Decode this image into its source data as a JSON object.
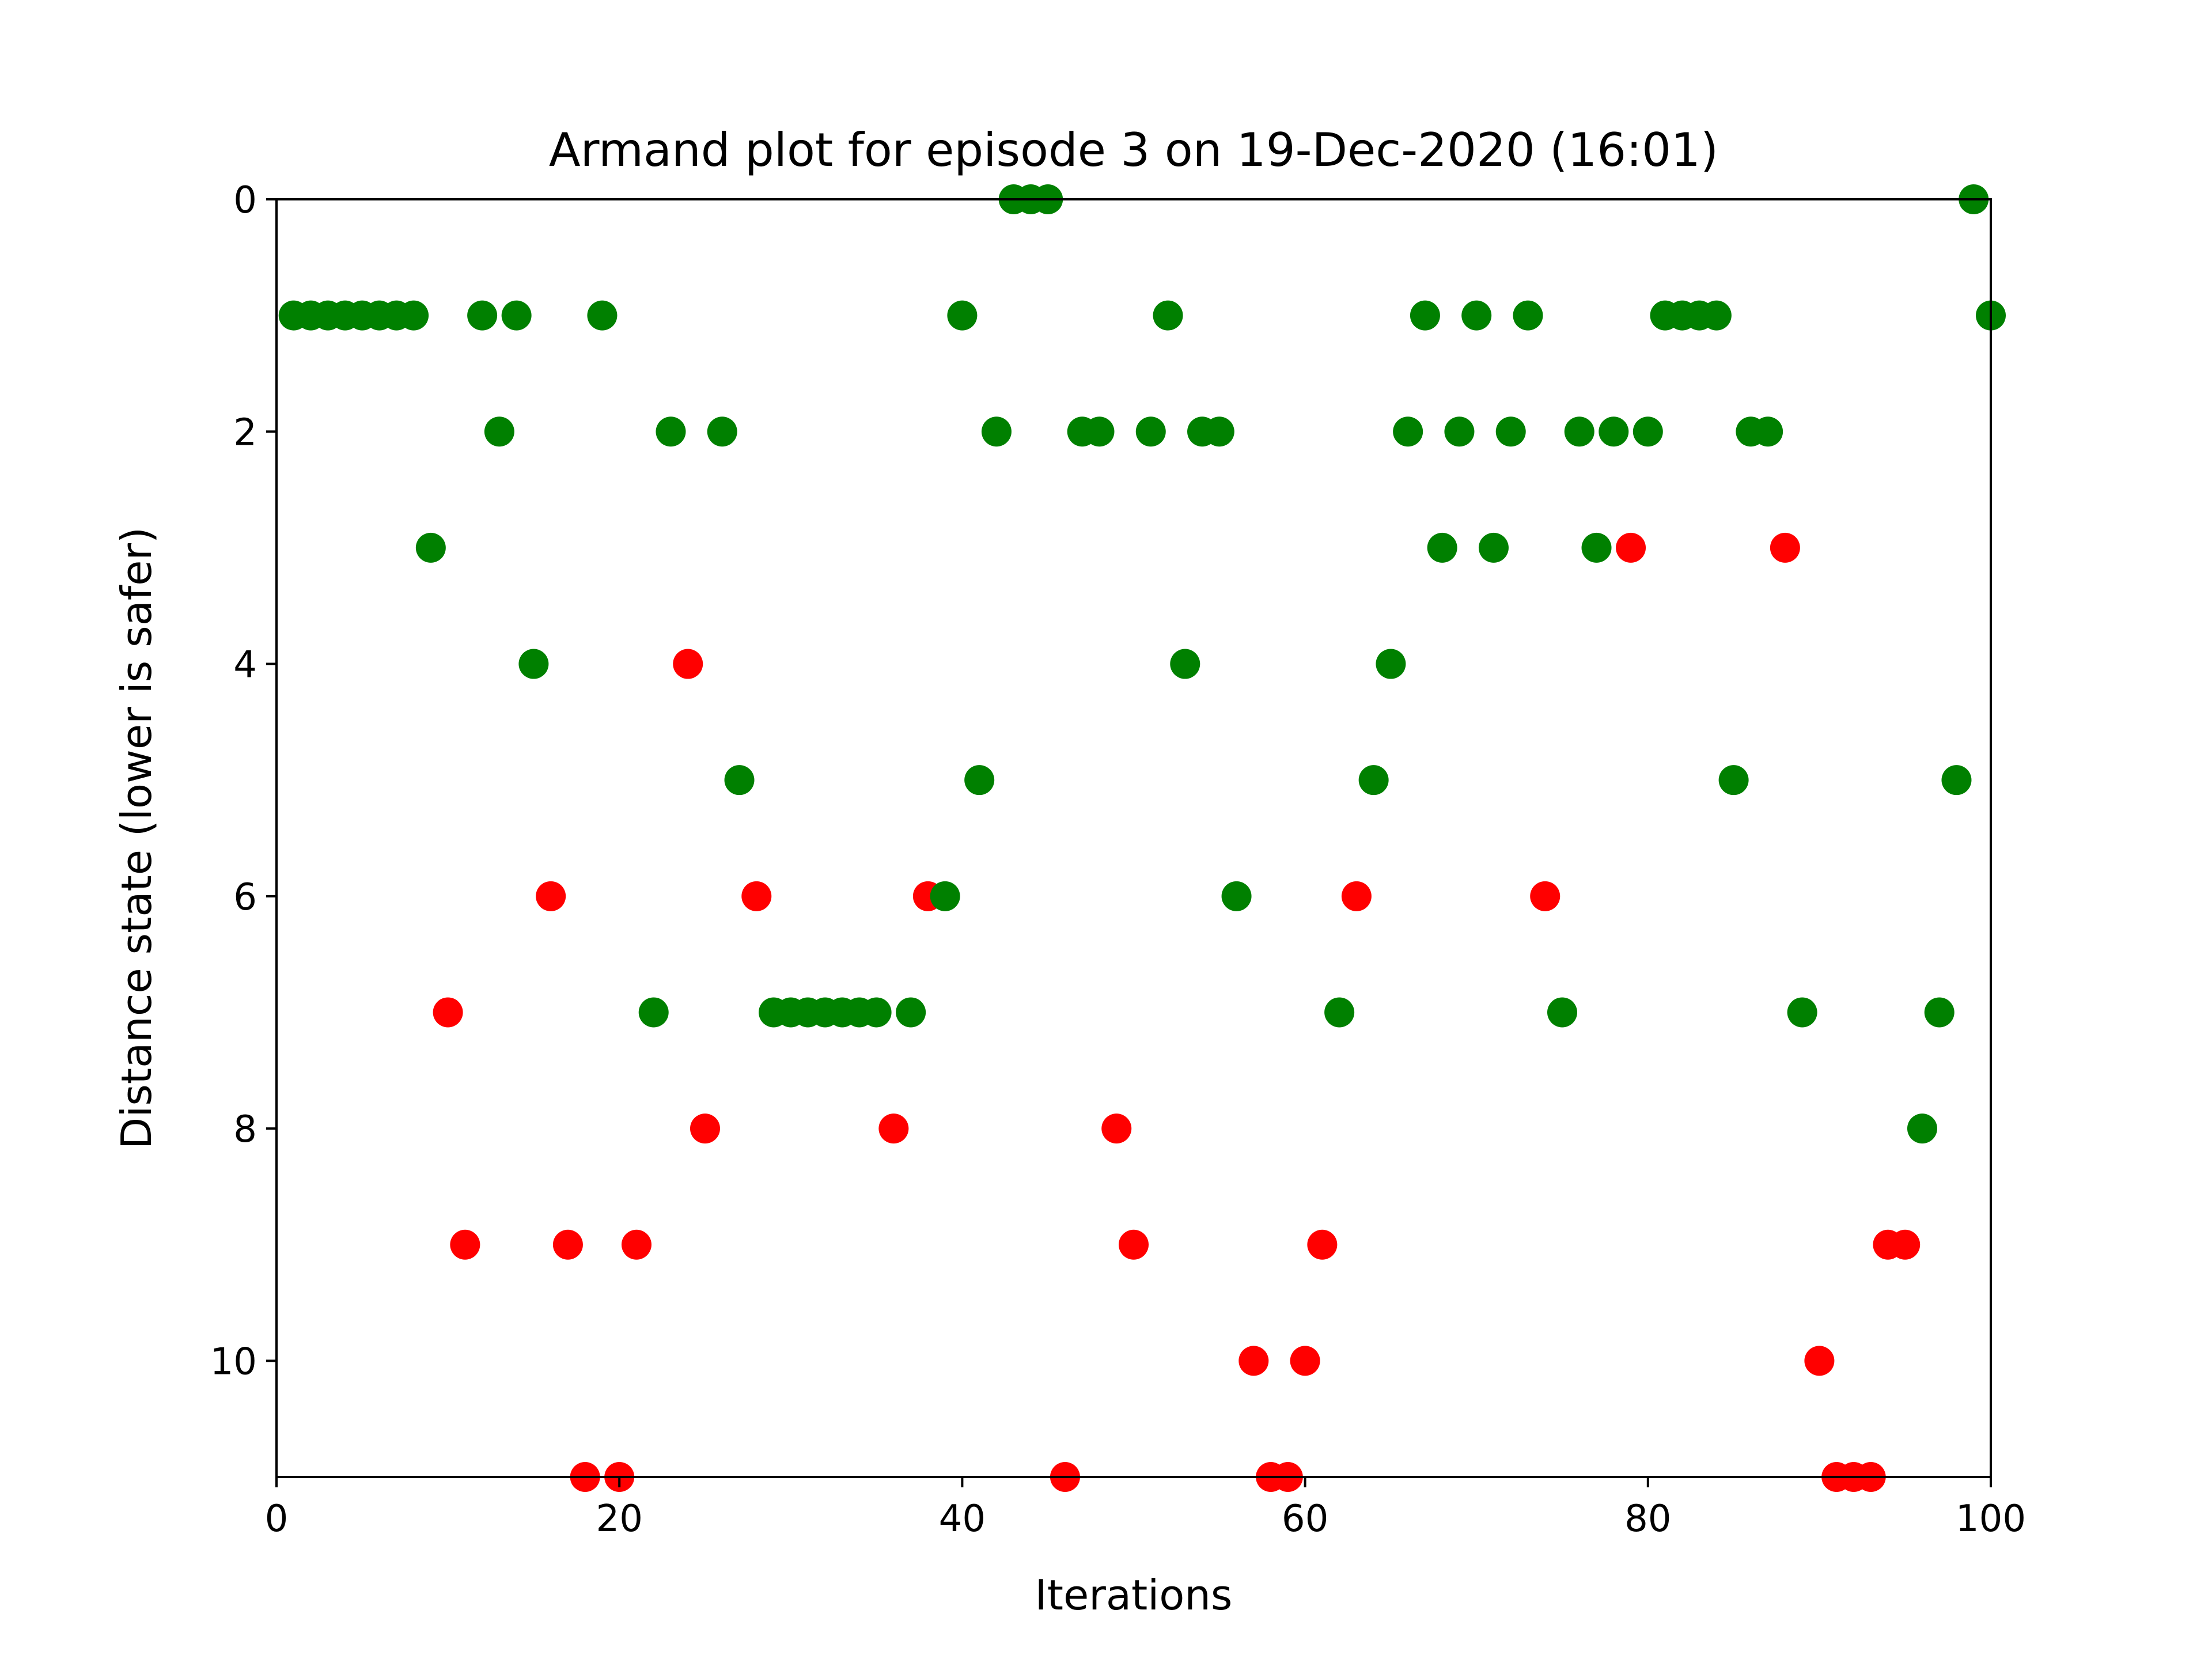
{
  "chart_data": {
    "type": "scatter",
    "title": "Armand plot for episode 3 on 19-Dec-2020 (16:01)",
    "xlabel": "Iterations",
    "ylabel": "Distance state (lower is safer)",
    "xlim": [
      0,
      100
    ],
    "ylim": [
      11,
      0
    ],
    "y_axis_inverted": true,
    "grid": false,
    "legend": "none",
    "x_ticks": [
      0,
      20,
      40,
      60,
      80,
      100
    ],
    "x_tick_labels": [
      "0",
      "20",
      "40",
      "60",
      "80",
      "100"
    ],
    "y_ticks": [
      0,
      2,
      4,
      6,
      8,
      10
    ],
    "y_tick_labels": [
      "0",
      "2",
      "4",
      "6",
      "8",
      "10"
    ],
    "colors": {
      "green": "#008000",
      "red": "#ff0000"
    },
    "points": [
      {
        "x": 1,
        "y": 1,
        "color": "green"
      },
      {
        "x": 2,
        "y": 1,
        "color": "green"
      },
      {
        "x": 3,
        "y": 1,
        "color": "green"
      },
      {
        "x": 4,
        "y": 1,
        "color": "green"
      },
      {
        "x": 5,
        "y": 1,
        "color": "green"
      },
      {
        "x": 6,
        "y": 1,
        "color": "green"
      },
      {
        "x": 7,
        "y": 1,
        "color": "green"
      },
      {
        "x": 8,
        "y": 1,
        "color": "green"
      },
      {
        "x": 9,
        "y": 3,
        "color": "green"
      },
      {
        "x": 10,
        "y": 7,
        "color": "red"
      },
      {
        "x": 11,
        "y": 9,
        "color": "red"
      },
      {
        "x": 12,
        "y": 1,
        "color": "green"
      },
      {
        "x": 13,
        "y": 2,
        "color": "green"
      },
      {
        "x": 14,
        "y": 1,
        "color": "green"
      },
      {
        "x": 15,
        "y": 4,
        "color": "green"
      },
      {
        "x": 16,
        "y": 6,
        "color": "red"
      },
      {
        "x": 17,
        "y": 9,
        "color": "red"
      },
      {
        "x": 18,
        "y": 11,
        "color": "red"
      },
      {
        "x": 19,
        "y": 1,
        "color": "green"
      },
      {
        "x": 20,
        "y": 11,
        "color": "red"
      },
      {
        "x": 21,
        "y": 9,
        "color": "red"
      },
      {
        "x": 22,
        "y": 7,
        "color": "green"
      },
      {
        "x": 23,
        "y": 2,
        "color": "green"
      },
      {
        "x": 24,
        "y": 4,
        "color": "red"
      },
      {
        "x": 25,
        "y": 8,
        "color": "red"
      },
      {
        "x": 26,
        "y": 2,
        "color": "green"
      },
      {
        "x": 27,
        "y": 5,
        "color": "green"
      },
      {
        "x": 28,
        "y": 6,
        "color": "red"
      },
      {
        "x": 29,
        "y": 7,
        "color": "green"
      },
      {
        "x": 30,
        "y": 7,
        "color": "green"
      },
      {
        "x": 31,
        "y": 7,
        "color": "green"
      },
      {
        "x": 32,
        "y": 7,
        "color": "green"
      },
      {
        "x": 33,
        "y": 7,
        "color": "green"
      },
      {
        "x": 34,
        "y": 7,
        "color": "green"
      },
      {
        "x": 35,
        "y": 7,
        "color": "green"
      },
      {
        "x": 36,
        "y": 8,
        "color": "red"
      },
      {
        "x": 37,
        "y": 7,
        "color": "green"
      },
      {
        "x": 38,
        "y": 6,
        "color": "red"
      },
      {
        "x": 39,
        "y": 6,
        "color": "green"
      },
      {
        "x": 40,
        "y": 1,
        "color": "green"
      },
      {
        "x": 41,
        "y": 5,
        "color": "green"
      },
      {
        "x": 42,
        "y": 2,
        "color": "green"
      },
      {
        "x": 43,
        "y": 0,
        "color": "green"
      },
      {
        "x": 44,
        "y": 0,
        "color": "green"
      },
      {
        "x": 45,
        "y": 0,
        "color": "green"
      },
      {
        "x": 46,
        "y": 11,
        "color": "red"
      },
      {
        "x": 47,
        "y": 2,
        "color": "green"
      },
      {
        "x": 48,
        "y": 2,
        "color": "green"
      },
      {
        "x": 49,
        "y": 8,
        "color": "red"
      },
      {
        "x": 50,
        "y": 9,
        "color": "red"
      },
      {
        "x": 51,
        "y": 2,
        "color": "green"
      },
      {
        "x": 52,
        "y": 1,
        "color": "green"
      },
      {
        "x": 53,
        "y": 4,
        "color": "green"
      },
      {
        "x": 54,
        "y": 2,
        "color": "green"
      },
      {
        "x": 55,
        "y": 2,
        "color": "green"
      },
      {
        "x": 56,
        "y": 6,
        "color": "green"
      },
      {
        "x": 57,
        "y": 10,
        "color": "red"
      },
      {
        "x": 58,
        "y": 11,
        "color": "red"
      },
      {
        "x": 59,
        "y": 11,
        "color": "red"
      },
      {
        "x": 60,
        "y": 10,
        "color": "red"
      },
      {
        "x": 61,
        "y": 9,
        "color": "red"
      },
      {
        "x": 62,
        "y": 7,
        "color": "green"
      },
      {
        "x": 63,
        "y": 6,
        "color": "red"
      },
      {
        "x": 64,
        "y": 5,
        "color": "green"
      },
      {
        "x": 65,
        "y": 4,
        "color": "green"
      },
      {
        "x": 66,
        "y": 2,
        "color": "green"
      },
      {
        "x": 67,
        "y": 1,
        "color": "green"
      },
      {
        "x": 68,
        "y": 3,
        "color": "green"
      },
      {
        "x": 69,
        "y": 2,
        "color": "green"
      },
      {
        "x": 70,
        "y": 1,
        "color": "green"
      },
      {
        "x": 71,
        "y": 3,
        "color": "green"
      },
      {
        "x": 72,
        "y": 2,
        "color": "green"
      },
      {
        "x": 73,
        "y": 1,
        "color": "green"
      },
      {
        "x": 74,
        "y": 6,
        "color": "red"
      },
      {
        "x": 75,
        "y": 7,
        "color": "green"
      },
      {
        "x": 76,
        "y": 2,
        "color": "green"
      },
      {
        "x": 77,
        "y": 3,
        "color": "green"
      },
      {
        "x": 78,
        "y": 2,
        "color": "green"
      },
      {
        "x": 79,
        "y": 3,
        "color": "red"
      },
      {
        "x": 80,
        "y": 2,
        "color": "green"
      },
      {
        "x": 81,
        "y": 1,
        "color": "green"
      },
      {
        "x": 82,
        "y": 1,
        "color": "green"
      },
      {
        "x": 83,
        "y": 1,
        "color": "green"
      },
      {
        "x": 84,
        "y": 1,
        "color": "green"
      },
      {
        "x": 85,
        "y": 5,
        "color": "green"
      },
      {
        "x": 86,
        "y": 2,
        "color": "green"
      },
      {
        "x": 87,
        "y": 2,
        "color": "green"
      },
      {
        "x": 88,
        "y": 3,
        "color": "red"
      },
      {
        "x": 89,
        "y": 7,
        "color": "green"
      },
      {
        "x": 90,
        "y": 10,
        "color": "red"
      },
      {
        "x": 91,
        "y": 11,
        "color": "red"
      },
      {
        "x": 92,
        "y": 11,
        "color": "red"
      },
      {
        "x": 93,
        "y": 11,
        "color": "red"
      },
      {
        "x": 94,
        "y": 9,
        "color": "red"
      },
      {
        "x": 95,
        "y": 9,
        "color": "red"
      },
      {
        "x": 96,
        "y": 8,
        "color": "green"
      },
      {
        "x": 97,
        "y": 7,
        "color": "green"
      },
      {
        "x": 98,
        "y": 5,
        "color": "green"
      },
      {
        "x": 99,
        "y": 0,
        "color": "green"
      },
      {
        "x": 100,
        "y": 1,
        "color": "green"
      }
    ]
  }
}
